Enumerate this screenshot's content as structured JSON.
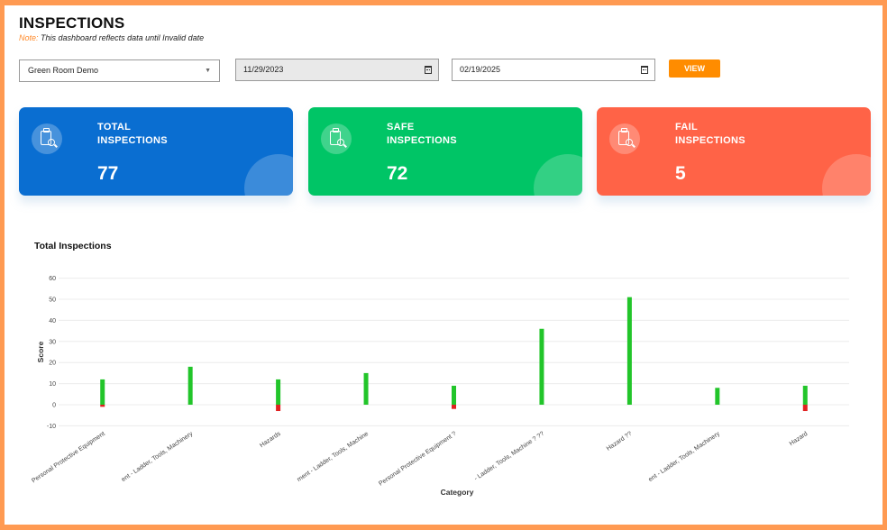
{
  "header": {
    "title": "INSPECTIONS",
    "note_label": "Note:",
    "note_text": "This dashboard reflects data until Invalid date"
  },
  "filters": {
    "site_select": "Green Room Demo",
    "start_date": "11/29/2023",
    "end_date": "02/19/2025",
    "view_label": "VIEW"
  },
  "cards": {
    "total": {
      "line1": "TOTAL",
      "line2": "INSPECTIONS",
      "value": "77",
      "color": "#0a6ed1",
      "icon": "clipboard-search-icon"
    },
    "safe": {
      "line1": "SAFE",
      "line2": "INSPECTIONS",
      "value": "72",
      "color": "#00c566",
      "icon": "clipboard-search-icon"
    },
    "fail": {
      "line1": "FAIL",
      "line2": "INSPECTIONS",
      "value": "5",
      "color": "#ff6347",
      "icon": "clipboard-search-icon"
    }
  },
  "chart_data": {
    "type": "bar",
    "title": "Total Inspections",
    "xlabel": "Category",
    "ylabel": "Score",
    "ylim": [
      -10,
      60
    ],
    "yticks": [
      60,
      50,
      40,
      30,
      20,
      10,
      0,
      -10
    ],
    "grid": true,
    "categories": [
      "Personal Protective Equipment",
      "Equipment - Ladder, Tools, Machinery",
      "Hazards",
      "Equipment - Ladder, Tools, Machine",
      "Personal Protective Equipment ?",
      "Equipment - Ladder, Tools, Machine ? ??",
      "Hazard ??",
      "Equipment - Ladder, Tools, Machinery",
      "Hazard"
    ],
    "categories_visible": [
      "Personal Protective Equipment",
      "ent - Ladder, Tools, Machinery",
      "Hazards",
      "ment - Ladder, Tools, Machine",
      "Personal Protective Equipment ?",
      "- Ladder, Tools, Machine ? ??",
      "Hazard ??",
      "ent - Ladder, Tools, Machinery",
      "Hazard"
    ],
    "series": [
      {
        "values": [
          12,
          18,
          12,
          15,
          9,
          36,
          51,
          8,
          9
        ],
        "color": "#22c52a"
      },
      {
        "values": [
          -1,
          0,
          -3,
          0,
          -2,
          0,
          0,
          0,
          -3
        ],
        "color": "#e02020"
      }
    ]
  }
}
